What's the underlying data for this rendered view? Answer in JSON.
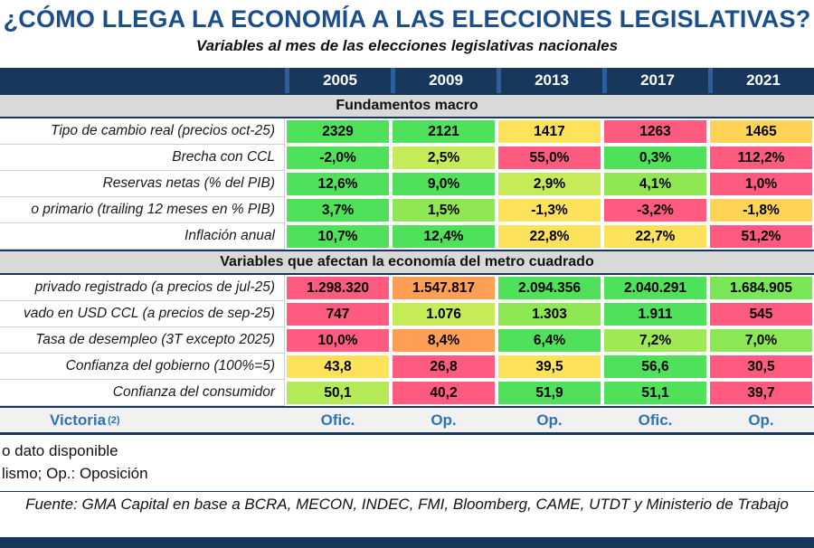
{
  "colors": {
    "navy": "#17375D",
    "title_blue": "#1A4E8C",
    "link_blue": "#2E74B5",
    "section_bg": "#D9D9D9",
    "grid_gray": "#CFCFCF",
    "header_sep": "#2E5E9E",
    "green": "#4FE15A",
    "light_green": "#8FE754",
    "yellow_green": "#C6EB58",
    "yellow": "#FFE25C",
    "gold": "#FFD355",
    "orange": "#FF9E55",
    "pink": "#FF5B80"
  },
  "chart_data": {
    "type": "table",
    "title": "¿CÓMO LLEGA LA ECONOMÍA A LAS ELECCIONES LEGISLATIVAS?",
    "subtitle": "Variables al mes de las elecciones legislativas nacionales",
    "columns": [
      "2005",
      "2009",
      "2013",
      "2017",
      "2021"
    ],
    "sections": [
      {
        "header": "Fundamentos macro",
        "rows": [
          {
            "label": "Tipo de cambio real (precios oct-25)",
            "values": [
              "2329",
              "2121",
              "1417",
              "1263",
              "1465"
            ],
            "colors": [
              "#4FE15A",
              "#4FE15A",
              "#FFE25C",
              "#FF5B80",
              "#FFD355"
            ]
          },
          {
            "label": "Brecha con CCL",
            "values": [
              "-2,0%",
              "2,5%",
              "55,0%",
              "0,3%",
              "112,2%"
            ],
            "colors": [
              "#4FE15A",
              "#C6EB58",
              "#FF5B80",
              "#4FE15A",
              "#FF5B80"
            ]
          },
          {
            "label": "Reservas netas (% del PIB)",
            "values": [
              "12,6%",
              "9,0%",
              "2,9%",
              "4,1%",
              "1,0%"
            ],
            "colors": [
              "#4FE15A",
              "#4FE15A",
              "#C6EB58",
              "#8FE754",
              "#FF5B80"
            ]
          },
          {
            "label": "o primario (trailing 12 meses en % PIB)",
            "values": [
              "3,7%",
              "1,5%",
              "-1,3%",
              "-3,2%",
              "-1,8%"
            ],
            "colors": [
              "#4FE15A",
              "#8FE754",
              "#FFE25C",
              "#FF5B80",
              "#FFD355"
            ]
          },
          {
            "label": "Inflación anual",
            "values": [
              "10,7%",
              "12,4%",
              "22,8%",
              "22,7%",
              "51,2%"
            ],
            "colors": [
              "#4FE15A",
              "#4FE15A",
              "#FFE25C",
              "#FFE25C",
              "#FF5B80"
            ]
          }
        ]
      },
      {
        "header": "Variables que afectan la economía del metro cuadrado",
        "rows": [
          {
            "label": "privado registrado (a precios de jul-25)",
            "values": [
              "1.298.320",
              "1.547.817",
              "2.094.356",
              "2.040.291",
              "1.684.905"
            ],
            "colors": [
              "#FF5B80",
              "#FF9E55",
              "#4FE15A",
              "#4FE15A",
              "#79E656"
            ]
          },
          {
            "label": "vado en USD CCL (a precios de sep-25)",
            "values": [
              "747",
              "1.076",
              "1.303",
              "1.911",
              "545"
            ],
            "colors": [
              "#FF5B80",
              "#C6EB58",
              "#8FE754",
              "#4FE15A",
              "#FF5B80"
            ]
          },
          {
            "label": "Tasa de desempleo (3T excepto 2025)",
            "values": [
              "10,0%",
              "8,4%",
              "6,4%",
              "7,2%",
              "7,0%"
            ],
            "colors": [
              "#FF5B80",
              "#FF9E55",
              "#4FE15A",
              "#9FE955",
              "#8CE754"
            ]
          },
          {
            "label": "Confianza del gobierno (100%=5)",
            "values": [
              "43,8",
              "26,8",
              "39,5",
              "56,6",
              "30,5"
            ],
            "colors": [
              "#FFE25C",
              "#FF5B80",
              "#FFE25C",
              "#4FE15A",
              "#FF5B80"
            ]
          },
          {
            "label": "Confianza del consumidor",
            "values": [
              "50,1",
              "40,2",
              "51,9",
              "51,1",
              "39,7"
            ],
            "colors": [
              "#B4EA57",
              "#FF5B80",
              "#4FE15A",
              "#4FE15A",
              "#FF5B80"
            ]
          }
        ]
      }
    ],
    "victory_row": {
      "label": "Victoria",
      "sup": "(2)",
      "values": [
        "Ofic.",
        "Op.",
        "Op.",
        "Ofic.",
        "Op."
      ]
    },
    "footnotes": [
      "o dato disponible",
      "lismo; Op.: Oposición"
    ],
    "source": "Fuente: GMA Capital en base a BCRA, MECON, INDEC, FMI, Bloomberg, CAME, UTDT y Ministerio de Trabajo"
  }
}
